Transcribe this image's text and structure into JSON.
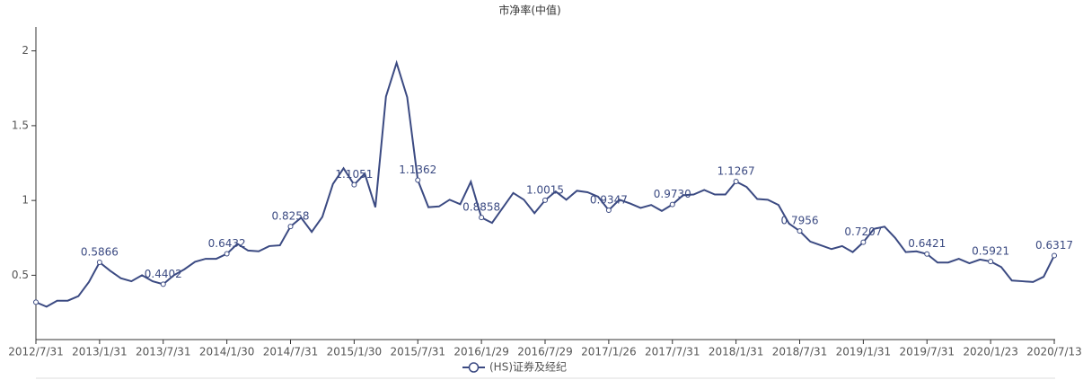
{
  "chart_data": {
    "type": "line",
    "title": "市净率(中值)",
    "categories": [
      "2012/7/31",
      null,
      null,
      null,
      null,
      null,
      "2013/1/31",
      null,
      null,
      null,
      null,
      null,
      "2013/7/31",
      null,
      null,
      null,
      null,
      null,
      "2014/1/30",
      null,
      null,
      null,
      null,
      null,
      "2014/7/31",
      null,
      null,
      null,
      null,
      null,
      "2015/1/30",
      null,
      null,
      null,
      null,
      null,
      "2015/7/31",
      null,
      null,
      null,
      null,
      null,
      "2016/1/29",
      null,
      null,
      null,
      null,
      null,
      "2016/7/29",
      null,
      null,
      null,
      null,
      null,
      "2017/1/26",
      null,
      null,
      null,
      null,
      null,
      "2017/7/31",
      null,
      null,
      null,
      null,
      null,
      "2018/1/31",
      null,
      null,
      null,
      null,
      null,
      "2018/7/31",
      null,
      null,
      null,
      null,
      null,
      "2019/1/31",
      null,
      null,
      null,
      null,
      null,
      "2019/7/31",
      null,
      null,
      null,
      null,
      null,
      "2020/1/23",
      null,
      null,
      null,
      null,
      null,
      "2020/7/13"
    ],
    "series": [
      {
        "name": "(HS)证券及经纪",
        "color": "#3b4a82",
        "values": [
          0.32,
          0.29,
          0.33,
          0.33,
          0.36,
          0.455,
          0.5866,
          0.53,
          0.48,
          0.46,
          0.5,
          0.46,
          0.4402,
          0.5,
          0.54,
          0.59,
          0.61,
          0.61,
          0.6432,
          0.71,
          0.665,
          0.66,
          0.695,
          0.7,
          0.8258,
          0.885,
          0.79,
          0.89,
          1.11,
          1.215,
          1.1051,
          1.18,
          0.955,
          1.695,
          1.92,
          1.69,
          1.1362,
          0.955,
          0.96,
          1.005,
          0.975,
          1.125,
          0.8858,
          0.85,
          0.95,
          1.05,
          1.005,
          0.915,
          1.0015,
          1.06,
          1.005,
          1.065,
          1.055,
          1.025,
          0.9347,
          1.005,
          0.98,
          0.95,
          0.97,
          0.93,
          0.973,
          1.035,
          1.04,
          1.07,
          1.04,
          1.04,
          1.1267,
          1.09,
          1.01,
          1.005,
          0.97,
          0.845,
          0.7956,
          0.725,
          0.7,
          0.675,
          0.695,
          0.655,
          0.7207,
          0.81,
          0.825,
          0.75,
          0.655,
          0.66,
          0.6421,
          0.585,
          0.585,
          0.61,
          0.58,
          0.605,
          0.5921,
          0.555,
          0.465,
          0.46,
          0.455,
          0.49,
          0.6317
        ],
        "value_labels": [
          null,
          null,
          null,
          null,
          null,
          null,
          "0.5866",
          null,
          null,
          null,
          null,
          null,
          "0.4402",
          null,
          null,
          null,
          null,
          null,
          "0.6432",
          null,
          null,
          null,
          null,
          null,
          "0.8258",
          null,
          null,
          null,
          null,
          null,
          "1.1051",
          null,
          null,
          null,
          null,
          null,
          "1.1362",
          null,
          null,
          null,
          null,
          null,
          "0.8858",
          null,
          null,
          null,
          null,
          null,
          "1.0015",
          null,
          null,
          null,
          null,
          null,
          "0.9347",
          null,
          null,
          null,
          null,
          null,
          "0.9730",
          null,
          null,
          null,
          null,
          null,
          "1.1267",
          null,
          null,
          null,
          null,
          null,
          "0.7956",
          null,
          null,
          null,
          null,
          null,
          "0.7207",
          null,
          null,
          null,
          null,
          null,
          "0.6421",
          null,
          null,
          null,
          null,
          null,
          "0.5921",
          null,
          null,
          null,
          null,
          null,
          "0.6317"
        ]
      }
    ],
    "ylim": [
      0.07,
      2.16
    ],
    "yticks": [
      0.5,
      1,
      1.5,
      2
    ]
  }
}
